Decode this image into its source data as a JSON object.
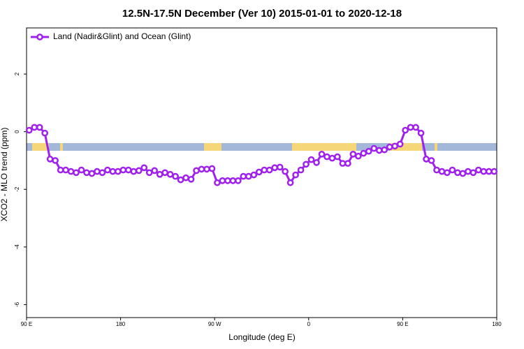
{
  "chart_data": {
    "type": "line",
    "title": "12.5N-17.5N December (Ver 10)   2015-01-01 to 2020-12-18",
    "x_label": "Longitude (deg E)",
    "y_label": "XCO2 - MLO trend (ppm)",
    "xlim": [
      90,
      540
    ],
    "ylim": [
      -6.45,
      3.6
    ],
    "xticks": [
      {
        "value": 90,
        "label": "90 E"
      },
      180,
      {
        "value": 270,
        "label": "90 W"
      },
      {
        "value": 360,
        "label": "0"
      },
      {
        "value": 450,
        "label": "90 E"
      },
      {
        "value": 540,
        "label": "180"
      }
    ],
    "yticks": [
      2,
      0,
      -2,
      -4,
      -6
    ],
    "legend": "top-left",
    "x": [
      92.5,
      97.5,
      102.5,
      107.5,
      112.5,
      117.5,
      122.5,
      127.5,
      132.5,
      137.5,
      142.5,
      147.5,
      152.5,
      157.5,
      162.5,
      167.5,
      172.5,
      177.5,
      182.5,
      187.5,
      192.5,
      197.5,
      202.5,
      207.5,
      212.5,
      217.5,
      222.5,
      227.5,
      232.5,
      237.5,
      242.5,
      247.5,
      252.5,
      257.5,
      262.5,
      267.5,
      272.5,
      277.5,
      282.5,
      287.5,
      292.5,
      297.5,
      302.5,
      307.5,
      312.5,
      317.5,
      322.5,
      327.5,
      332.5,
      337.5,
      342.5,
      347.5,
      352.5,
      357.5,
      362.5,
      367.5,
      372.5,
      377.5,
      382.5,
      387.5,
      392.5,
      397.5,
      402.5,
      407.5,
      412.5,
      417.5,
      422.5,
      427.5,
      432.5,
      437.5,
      442.5,
      447.5,
      452.5,
      457.5,
      462.5,
      467.5,
      472.5,
      477.5,
      482.5,
      487.5,
      492.5,
      497.5,
      502.5,
      507.5,
      512.5,
      517.5,
      522.5,
      527.5,
      532.5,
      537.5
    ],
    "series": [
      {
        "name": "Land (Nadir&Glint) and Ocean (Glint)",
        "color": "#a020f0",
        "values": [
          0.05,
          0.15,
          0.15,
          -0.05,
          -0.95,
          -1.0,
          -1.33,
          -1.33,
          -1.38,
          -1.42,
          -1.33,
          -1.42,
          -1.45,
          -1.38,
          -1.42,
          -1.33,
          -1.38,
          -1.38,
          -1.33,
          -1.33,
          -1.38,
          -1.35,
          -1.25,
          -1.42,
          -1.35,
          -1.48,
          -1.42,
          -1.48,
          -1.55,
          -1.67,
          -1.6,
          -1.65,
          -1.35,
          -1.3,
          -1.3,
          -1.28,
          -1.77,
          -1.7,
          -1.7,
          -1.7,
          -1.7,
          -1.55,
          -1.55,
          -1.5,
          -1.4,
          -1.33,
          -1.33,
          -1.25,
          -1.23,
          -1.38,
          -1.77,
          -1.5,
          -1.33,
          -1.13,
          -0.97,
          -1.07,
          -0.78,
          -0.87,
          -0.92,
          -0.87,
          -1.1,
          -1.1,
          -0.78,
          -0.85,
          -0.75,
          -0.68,
          -0.58,
          -0.65,
          -0.63,
          -0.53,
          -0.5,
          -0.43,
          0.05,
          0.15,
          0.15,
          -0.05,
          -0.95,
          -1.0,
          -1.33,
          -1.38,
          -1.42,
          -1.33,
          -1.42,
          -1.45,
          -1.38,
          -1.42,
          -1.33,
          -1.38,
          -1.38,
          -1.38
        ]
      }
    ]
  }
}
